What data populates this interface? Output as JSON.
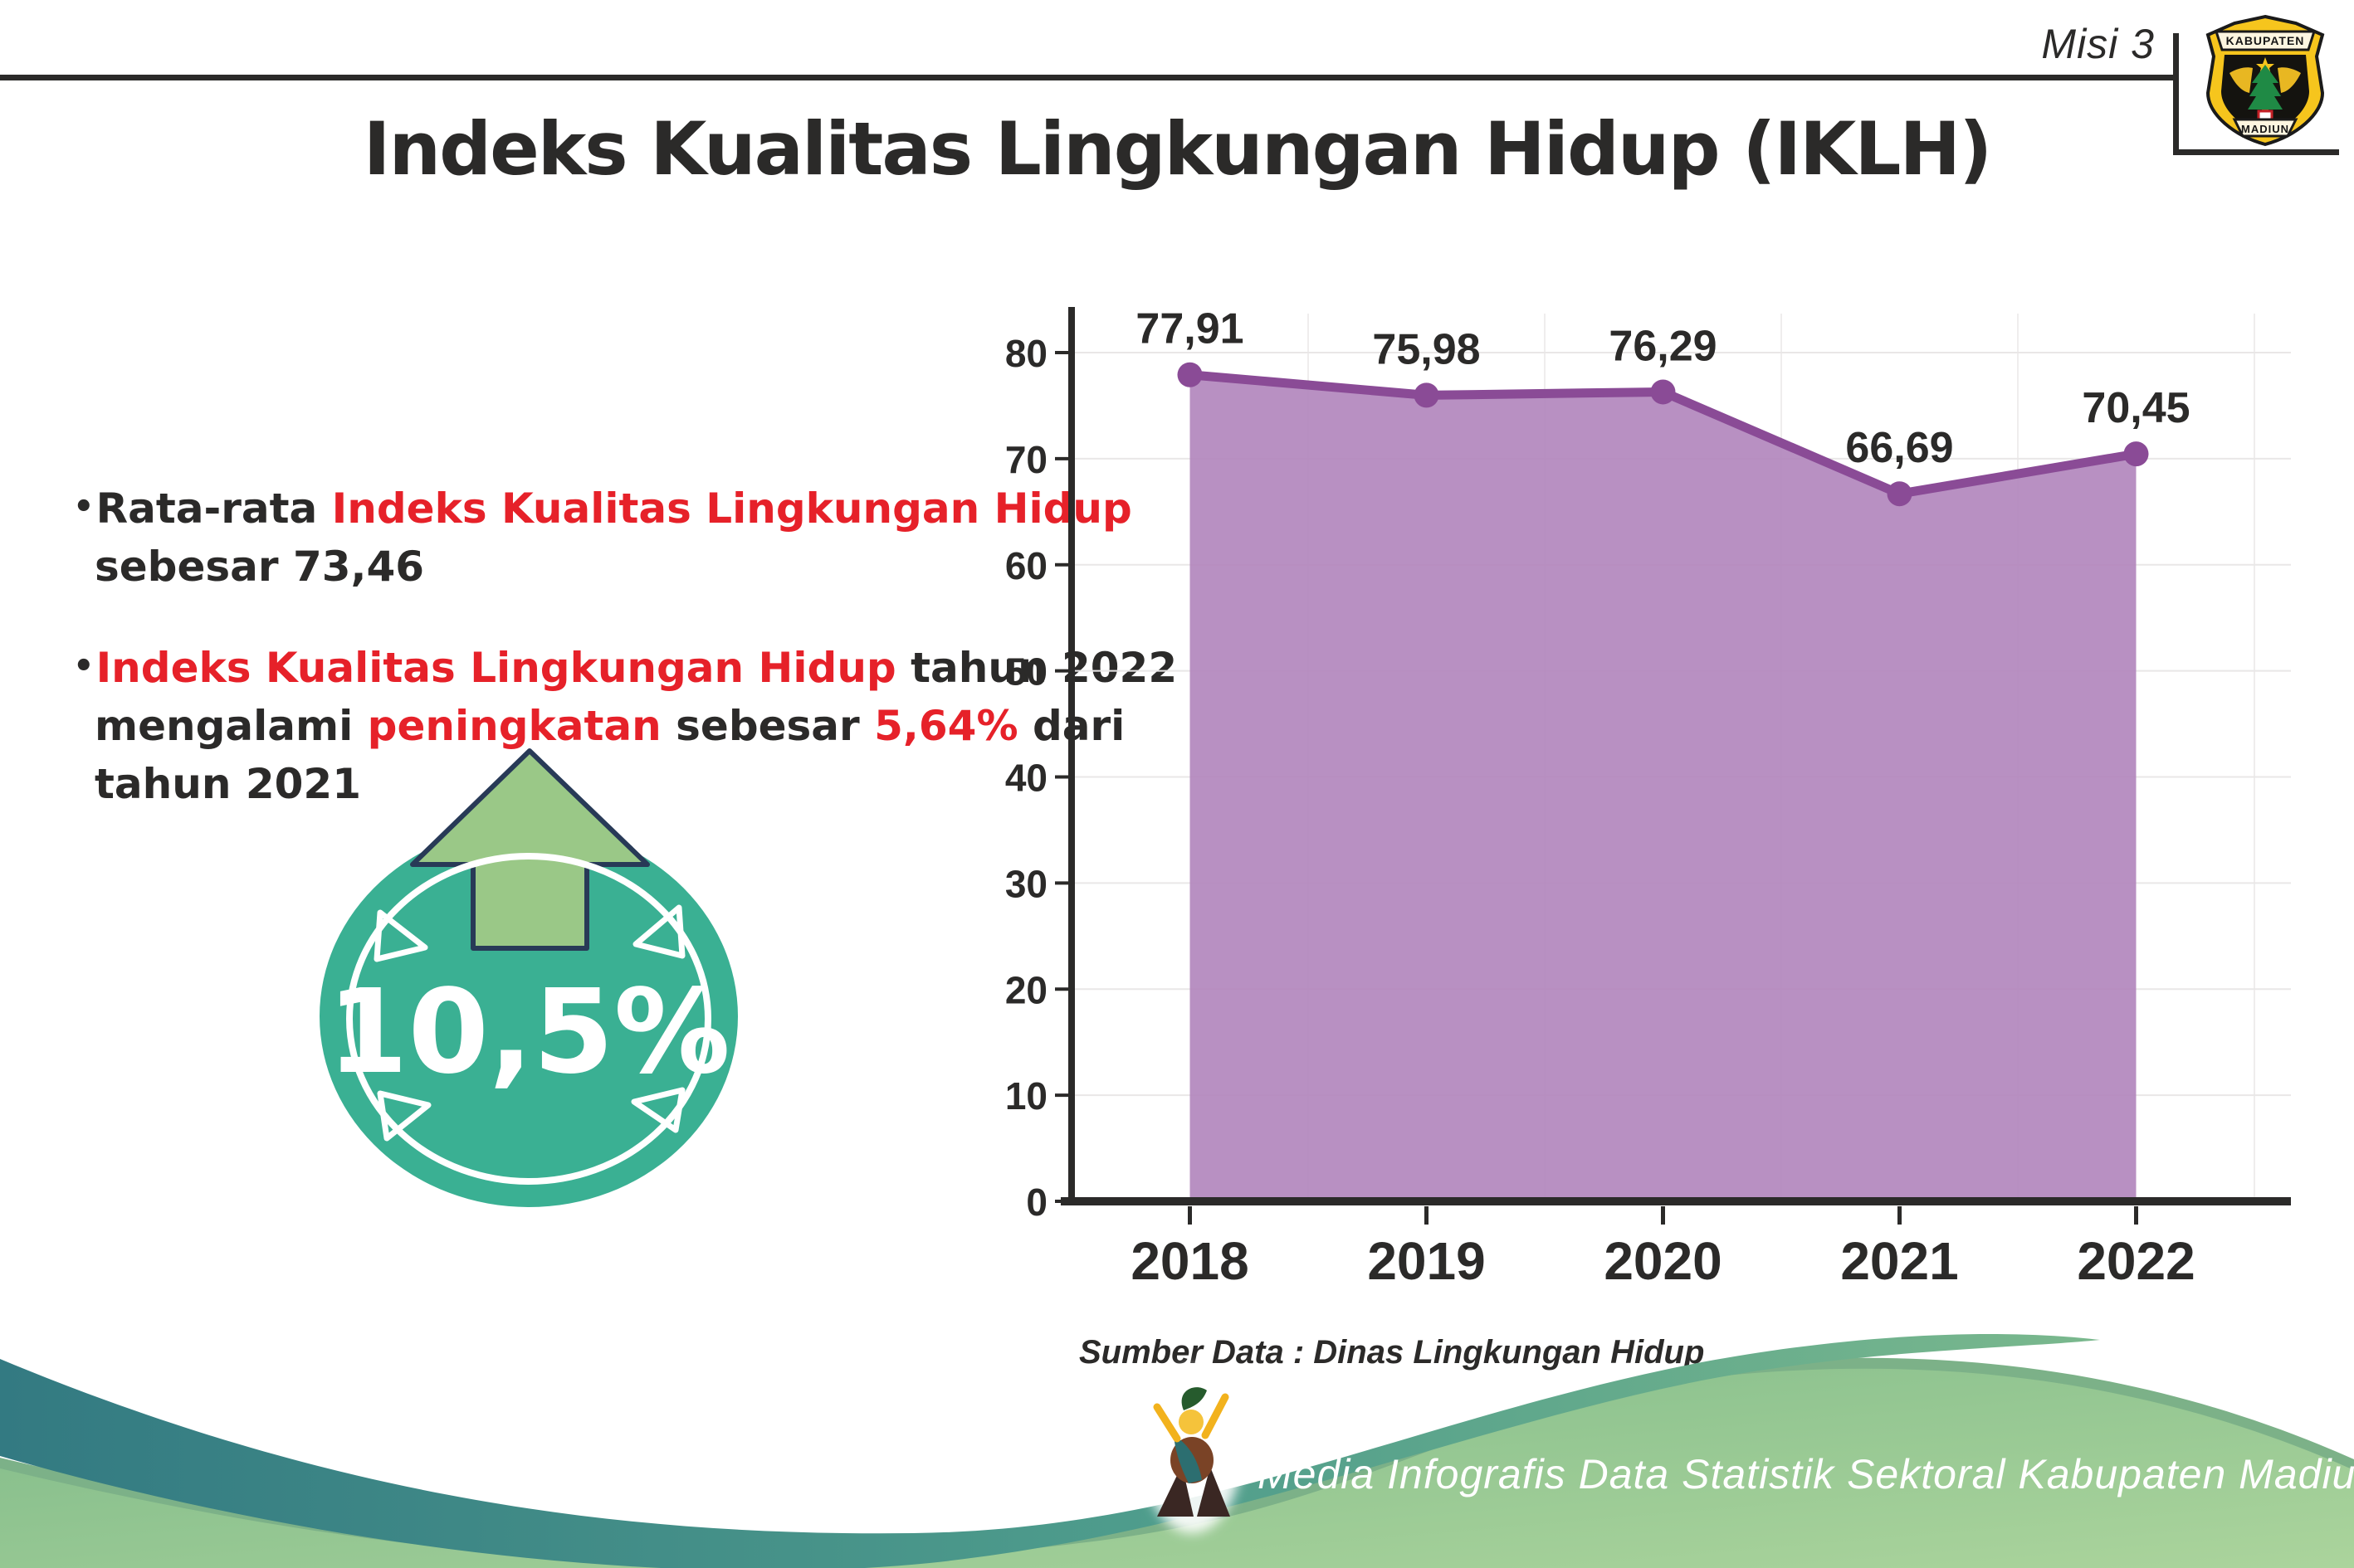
{
  "header": {
    "misi": "Misi 3",
    "logo": {
      "top": "KABUPATEN",
      "bottom": "MADIUN"
    }
  },
  "title": "Indeks Kualitas Lingkungan Hidup (IKLH)",
  "bullets": {
    "one": {
      "bullet": "•",
      "l1": [
        {
          "t": "Rata-rata ",
          "red": false
        },
        {
          "t": "Indeks Kualitas Lingkungan Hidup",
          "red": true
        }
      ],
      "l2": [
        {
          "t": "sebesar 73,46",
          "red": false
        }
      ]
    },
    "two": {
      "bullet": "•",
      "l1": [
        {
          "t": "Indeks Kualitas Lingkungan Hidup",
          "red": true
        },
        {
          "t": " tahun 2022",
          "red": false
        }
      ],
      "l2": [
        {
          "t": "mengalami ",
          "red": false
        },
        {
          "t": "peningkatan",
          "red": true
        },
        {
          "t": " sebesar ",
          "red": false
        },
        {
          "t": "5,64%",
          "red": true
        },
        {
          "t": " dari",
          "red": false
        }
      ],
      "l3": [
        {
          "t": "tahun 2021",
          "red": false
        }
      ]
    }
  },
  "badge": {
    "value": "10,5%",
    "circle_color": "#3ab093",
    "arrow_color": "#9ac887",
    "arrow_outline": "#283a57"
  },
  "chart_data": {
    "type": "area",
    "categories": [
      "2018",
      "2019",
      "2020",
      "2021",
      "2022"
    ],
    "values": [
      77.91,
      75.98,
      76.29,
      66.69,
      70.45
    ],
    "labels": [
      "77,91",
      "75,98",
      "76,29",
      "66,69",
      "70,45"
    ],
    "y_ticks": [
      0,
      10,
      20,
      30,
      40,
      50,
      60,
      70,
      80
    ],
    "ylim": [
      0,
      80
    ],
    "grid": true,
    "legend": "none",
    "xlabel": "",
    "ylabel": "",
    "source": "Sumber Data : Dinas Lingkungan Hidup",
    "colors": {
      "area": "#b287bd",
      "line": "#8a4b96",
      "marker": "#8a4b96",
      "text": "#2b2a29",
      "grid": "#e9e7e7"
    }
  },
  "footer": {
    "caption": "Media Infografis Data Statistik Sektoral Kabupaten Madiun |",
    "colors": {
      "teal": "#357d82",
      "teal_light": "#7ab88d",
      "green": "#87bf8c",
      "green_light": "#a9d29a",
      "trim": "#7cb188"
    }
  }
}
